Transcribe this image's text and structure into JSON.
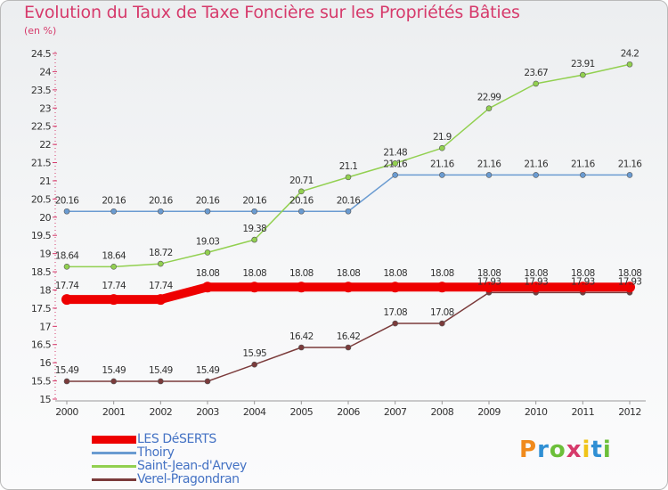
{
  "header": {
    "title": "Evolution du Taux de Taxe Foncière sur les Propriétés Bâties",
    "unit": "(en %)"
  },
  "logo": {
    "text": "Proxiti",
    "colors": [
      "#f08a1c",
      "#2f8fd4",
      "#6cbf3a",
      "#d63a6b",
      "#f0c419",
      "#2f8fd4",
      "#6cbf3a"
    ]
  },
  "chart_data": {
    "type": "line",
    "x": [
      "2000",
      "2001",
      "2002",
      "2003",
      "2004",
      "2005",
      "2006",
      "2007",
      "2008",
      "2009",
      "2010",
      "2011",
      "2012"
    ],
    "ylim": [
      15,
      24.5
    ],
    "yticks": [
      "15",
      "15.5",
      "16",
      "16.5",
      "17",
      "17.5",
      "18",
      "18.5",
      "19",
      "19.5",
      "20",
      "20.5",
      "21",
      "21.5",
      "22",
      "22.5",
      "23",
      "23.5",
      "24",
      "24.5"
    ],
    "legend_position": "bottom-left",
    "grid": false,
    "series": [
      {
        "name": "LES DéSERTS",
        "color": "#ee0000",
        "width": 10,
        "values": [
          17.74,
          17.74,
          17.74,
          18.08,
          18.08,
          18.08,
          18.08,
          18.08,
          18.08,
          18.08,
          18.08,
          18.08,
          18.08
        ],
        "labels": [
          "17.74",
          "17.74",
          "17.74",
          "18.08",
          "18.08",
          "18.08",
          "18.08",
          "18.08",
          "18.08",
          "18.08",
          "18.08",
          "18.08",
          "18.08"
        ]
      },
      {
        "name": "Thoiry",
        "color": "#6a9bd1",
        "width": 1.5,
        "values": [
          20.16,
          20.16,
          20.16,
          20.16,
          20.16,
          20.16,
          20.16,
          21.16,
          21.16,
          21.16,
          21.16,
          21.16,
          21.16
        ],
        "labels": [
          "20.16",
          "20.16",
          "20.16",
          "20.16",
          "20.16",
          "20.16",
          "20.16",
          "21.16",
          "21.16",
          "21.16",
          "21.16",
          "21.16",
          "21.16"
        ]
      },
      {
        "name": "Saint-Jean-d'Arvey",
        "color": "#92d050",
        "width": 1.5,
        "values": [
          18.64,
          18.64,
          18.72,
          19.03,
          19.38,
          20.71,
          21.1,
          21.48,
          21.9,
          22.99,
          23.67,
          23.91,
          24.2
        ],
        "labels": [
          "18.64",
          "18.64",
          "18.72",
          "19.03",
          "19.38",
          "20.71",
          "21.1",
          "21.48",
          "21.9",
          "22.99",
          "23.67",
          "23.91",
          "24.2"
        ]
      },
      {
        "name": "Verel-Pragondran",
        "color": "#7b3b3b",
        "width": 1.5,
        "values": [
          15.49,
          15.49,
          15.49,
          15.49,
          15.95,
          16.42,
          16.42,
          17.08,
          17.08,
          17.93,
          17.93,
          17.93,
          17.93
        ],
        "labels": [
          "15.49",
          "15.49",
          "15.49",
          "15.49",
          "15.95",
          "16.42",
          "16.42",
          "17.08",
          "17.08",
          "17.93",
          "17.93",
          "17.93",
          "17.93"
        ]
      }
    ]
  }
}
